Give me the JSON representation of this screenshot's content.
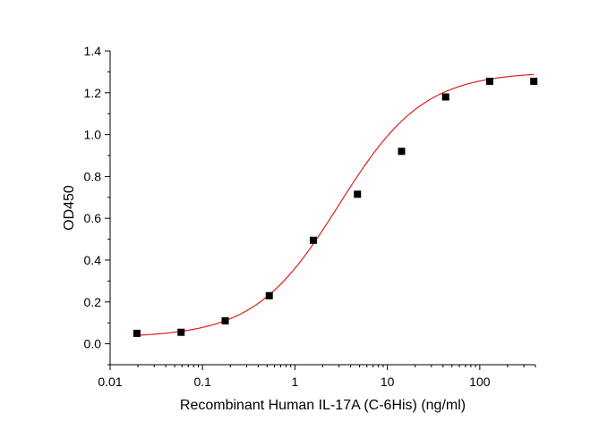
{
  "chart_data": {
    "type": "scatter",
    "title": "",
    "xlabel": "Recombinant Human IL-17A (C-6His) (ng/ml)",
    "ylabel": "OD450",
    "xscale": "log",
    "xlim": [
      0.01,
      400
    ],
    "ylim": [
      -0.1,
      1.4
    ],
    "x_ticks": [
      0.01,
      0.1,
      1,
      10,
      100
    ],
    "x_tick_labels": [
      "0.01",
      "0.1",
      "1",
      "10",
      "100"
    ],
    "y_ticks": [
      0.0,
      0.2,
      0.4,
      0.6,
      0.8,
      1.0,
      1.2,
      1.4
    ],
    "y_tick_labels": [
      "0.0",
      "0.2",
      "0.4",
      "0.6",
      "0.8",
      "1.0",
      "1.2",
      "1.4"
    ],
    "grid": false,
    "legend": "none",
    "series": [
      {
        "kind": "points",
        "marker": "square",
        "color": "#000000",
        "x": [
          0.0195,
          0.0586,
          0.1758,
          0.5273,
          1.582,
          4.746,
          14.24,
          42.71,
          128.1,
          384.4
        ],
        "y": [
          0.05,
          0.055,
          0.11,
          0.23,
          0.495,
          0.715,
          0.92,
          1.18,
          1.255,
          1.255
        ]
      },
      {
        "kind": "fit-curve",
        "model": "4PL",
        "color": "#e0201a",
        "params": {
          "bottom": 0.03,
          "top": 1.3,
          "ec50": 3.0,
          "hill": 0.95
        },
        "x_range": [
          0.0195,
          384.4
        ]
      }
    ]
  }
}
